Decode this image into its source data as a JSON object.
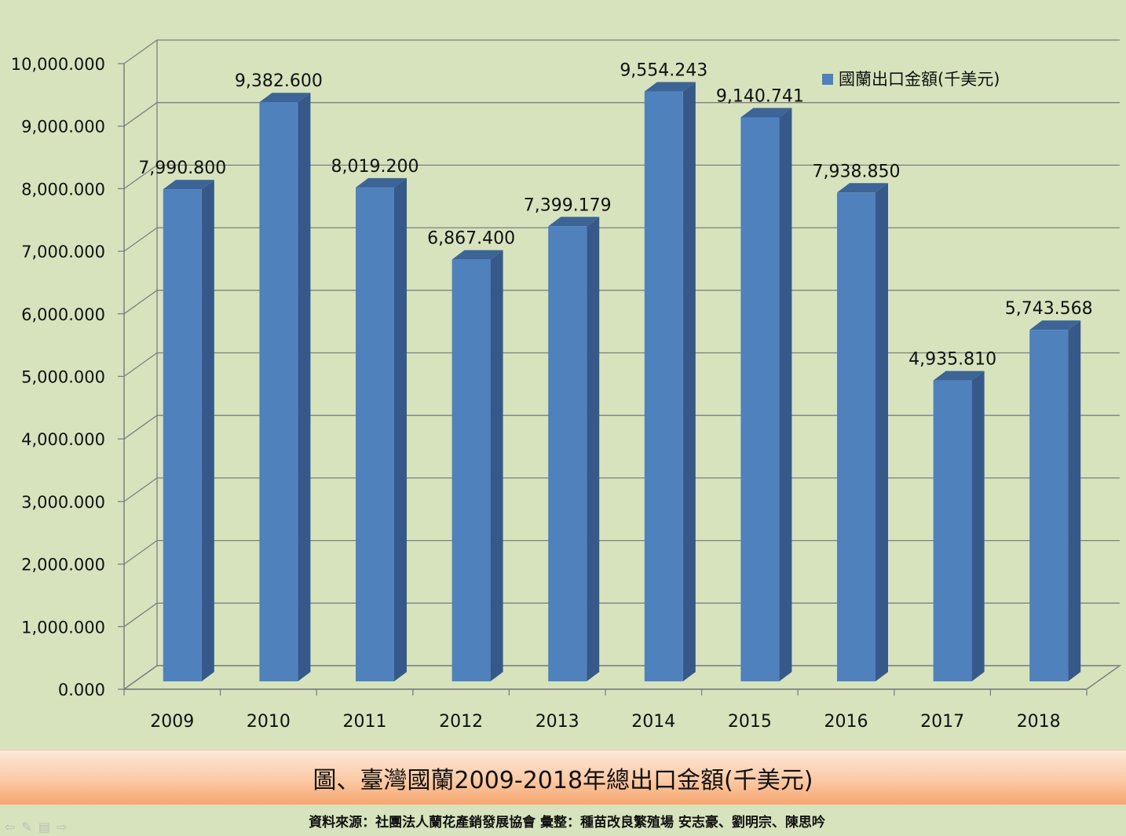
{
  "chart_data": {
    "type": "bar",
    "categories": [
      "2009",
      "2010",
      "2011",
      "2012",
      "2013",
      "2014",
      "2015",
      "2016",
      "2017",
      "2018"
    ],
    "series": [
      {
        "name": "國蘭出口金額(千美元)",
        "values": [
          7990.8,
          9382.6,
          8019.2,
          6867.4,
          7399.179,
          9554.243,
          9140.741,
          7938.85,
          4935.81,
          5743.568
        ],
        "labels": [
          "7,990.800",
          "9,382.600",
          "8,019.200",
          "6,867.400",
          "7,399.179",
          "9,554.243",
          "9,140.741",
          "7,938.850",
          "4,935.810",
          "5,743.568"
        ]
      }
    ],
    "ylim": [
      0,
      10000
    ],
    "yticks": [
      0,
      1000,
      2000,
      3000,
      4000,
      5000,
      6000,
      7000,
      8000,
      9000,
      10000
    ],
    "ytick_labels": [
      "0.000",
      "1,000.000",
      "2,000.000",
      "3,000.000",
      "4,000.000",
      "5,000.000",
      "6,000.000",
      "7,000.000",
      "8,000.000",
      "9,000.000",
      "10,000.000"
    ],
    "grid": true,
    "legend_position": "top-right",
    "bar_color": "#4f81bd",
    "bar_side_color": "#37598a",
    "bar_top_color": "#3d6496"
  },
  "caption": "圖、臺灣國蘭2009-2018年總出口金額(千美元)",
  "source": "資料來源：社團法人蘭花產銷發展協會  彙整：種苗改良繁殖場  安志豪、劉明宗、陳思吟",
  "nav_icons": [
    "prev-icon",
    "pen-icon",
    "menu-icon",
    "next-icon"
  ]
}
